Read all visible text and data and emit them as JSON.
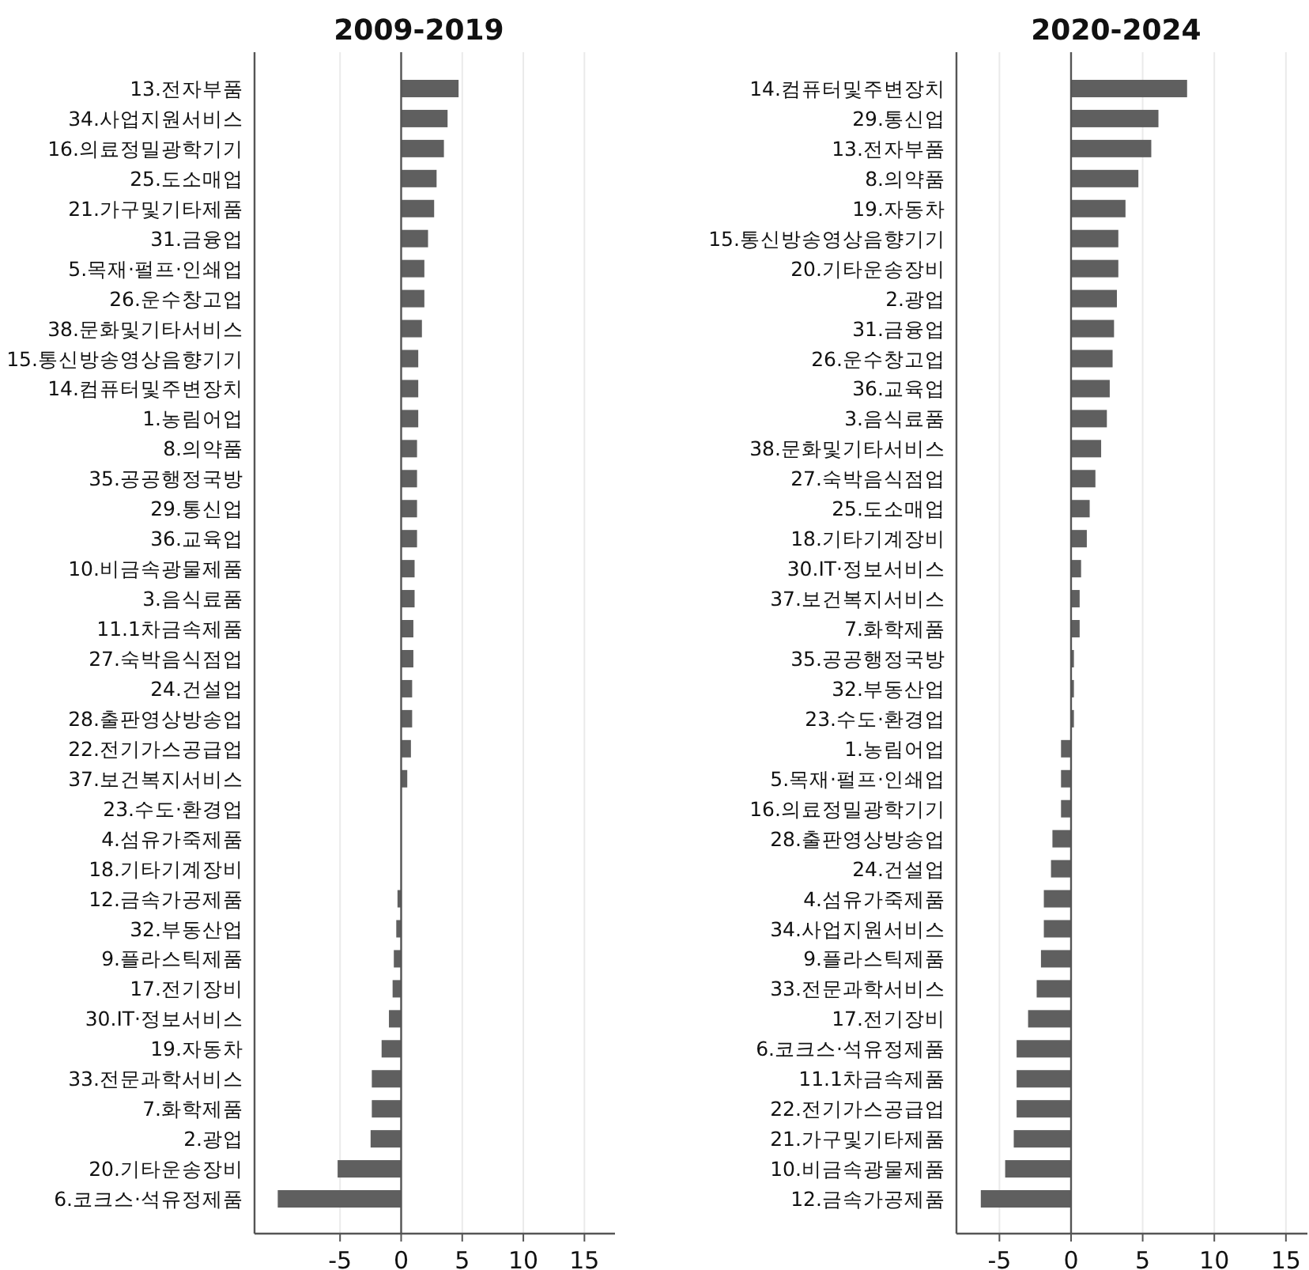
{
  "chart_data": [
    {
      "type": "bar",
      "orientation": "horizontal",
      "title": "2009-2019",
      "color": "#5f5f5f",
      "grid": "x",
      "xlim": [
        -12,
        17.5
      ],
      "xticks": [
        -5,
        0,
        5,
        10,
        15
      ],
      "categories": [
        "13.전자부품",
        "34.사업지원서비스",
        "16.의료정밀광학기기",
        "25.도소매업",
        "21.가구및기타제품",
        "31.금융업",
        "5.목재·펄프·인쇄업",
        "26.운수창고업",
        "38.문화및기타서비스",
        "15.통신방송영상음향기기",
        "14.컴퓨터및주변장치",
        "1.농림어업",
        "8.의약품",
        "35.공공행정국방",
        "29.통신업",
        "36.교육업",
        "10.비금속광물제품",
        "3.음식료품",
        "11.1차금속제품",
        "27.숙박음식점업",
        "24.건설업",
        "28.출판영상방송업",
        "22.전기가스공급업",
        "37.보건복지서비스",
        "23.수도·환경업",
        "4.섬유가죽제품",
        "18.기타기계장비",
        "12.금속가공제품",
        "32.부동산업",
        "9.플라스틱제품",
        "17.전기장비",
        "30.IT·정보서비스",
        "19.자동차",
        "33.전문과학서비스",
        "7.화학제품",
        "2.광업",
        "20.기타운송장비",
        "6.코크스·석유정제품"
      ],
      "values": [
        4.7,
        3.8,
        3.5,
        2.9,
        2.7,
        2.2,
        1.9,
        1.9,
        1.7,
        1.4,
        1.4,
        1.4,
        1.3,
        1.3,
        1.3,
        1.3,
        1.1,
        1.1,
        1.0,
        1.0,
        0.9,
        0.9,
        0.8,
        0.5,
        0.0,
        0.0,
        0.0,
        -0.3,
        -0.4,
        -0.6,
        -0.7,
        -1.0,
        -1.6,
        -2.4,
        -2.4,
        -2.5,
        -5.2,
        -10.1
      ]
    },
    {
      "type": "bar",
      "orientation": "horizontal",
      "title": "2020-2024",
      "color": "#5f5f5f",
      "grid": "x",
      "xlim": [
        -8,
        16.5
      ],
      "xticks": [
        -5,
        0,
        5,
        10,
        15
      ],
      "categories": [
        "14.컴퓨터및주변장치",
        "29.통신업",
        "13.전자부품",
        "8.의약품",
        "19.자동차",
        "15.통신방송영상음향기기",
        "20.기타운송장비",
        "2.광업",
        "31.금융업",
        "26.운수창고업",
        "36.교육업",
        "3.음식료품",
        "38.문화및기타서비스",
        "27.숙박음식점업",
        "25.도소매업",
        "18.기타기계장비",
        "30.IT·정보서비스",
        "37.보건복지서비스",
        "7.화학제품",
        "35.공공행정국방",
        "32.부동산업",
        "23.수도·환경업",
        "1.농림어업",
        "5.목재·펄프·인쇄업",
        "16.의료정밀광학기기",
        "28.출판영상방송업",
        "24.건설업",
        "4.섬유가죽제품",
        "34.사업지원서비스",
        "9.플라스틱제품",
        "33.전문과학서비스",
        "17.전기장비",
        "6.코크스·석유정제품",
        "11.1차금속제품",
        "22.전기가스공급업",
        "21.가구및기타제품",
        "10.비금속광물제품",
        "12.금속가공제품"
      ],
      "values": [
        8.1,
        6.1,
        5.6,
        4.7,
        3.8,
        3.3,
        3.3,
        3.2,
        3.0,
        2.9,
        2.7,
        2.5,
        2.1,
        1.7,
        1.3,
        1.1,
        0.7,
        0.6,
        0.6,
        0.2,
        0.2,
        0.2,
        -0.7,
        -0.7,
        -0.7,
        -1.3,
        -1.4,
        -1.9,
        -1.9,
        -2.1,
        -2.4,
        -3.0,
        -3.8,
        -3.8,
        -3.8,
        -4.0,
        -4.6,
        -6.3
      ]
    }
  ]
}
